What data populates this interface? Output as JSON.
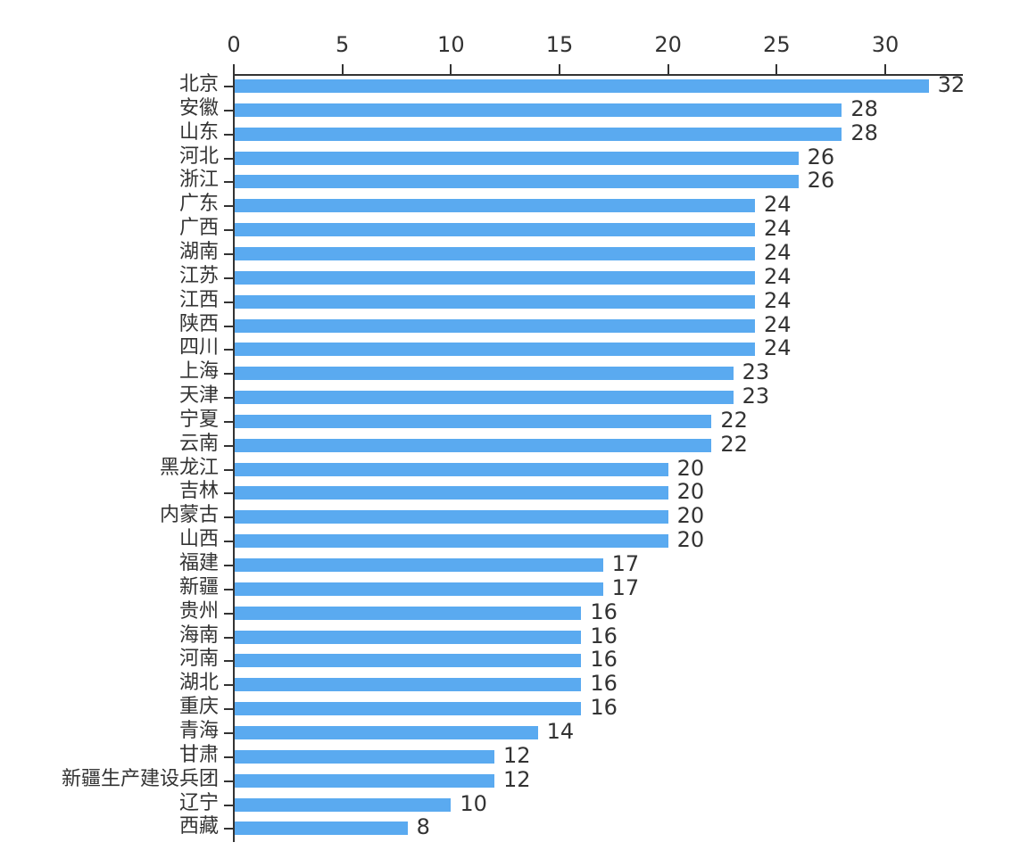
{
  "chart_data": {
    "type": "bar",
    "orientation": "horizontal",
    "title": "",
    "xlabel": "",
    "ylabel": "",
    "xlim": [
      0,
      33.5
    ],
    "x_ticks": [
      0,
      5,
      10,
      15,
      20,
      25,
      30
    ],
    "x_axis_position": "top",
    "grid": false,
    "legend": null,
    "bar_color": "#5aaaf0",
    "data_labels": true,
    "categories": [
      "北京",
      "安徽",
      "山东",
      "河北",
      "浙江",
      "广东",
      "广西",
      "湖南",
      "江苏",
      "江西",
      "陕西",
      "四川",
      "上海",
      "天津",
      "宁夏",
      "云南",
      "黑龙江",
      "吉林",
      "内蒙古",
      "山西",
      "福建",
      "新疆",
      "贵州",
      "海南",
      "河南",
      "湖北",
      "重庆",
      "青海",
      "甘肃",
      "新疆生产建设兵团",
      "辽宁",
      "西藏"
    ],
    "values": [
      32,
      28,
      28,
      26,
      26,
      24,
      24,
      24,
      24,
      24,
      24,
      24,
      23,
      23,
      22,
      22,
      20,
      20,
      20,
      20,
      17,
      17,
      16,
      16,
      16,
      16,
      16,
      14,
      12,
      12,
      10,
      8
    ]
  }
}
